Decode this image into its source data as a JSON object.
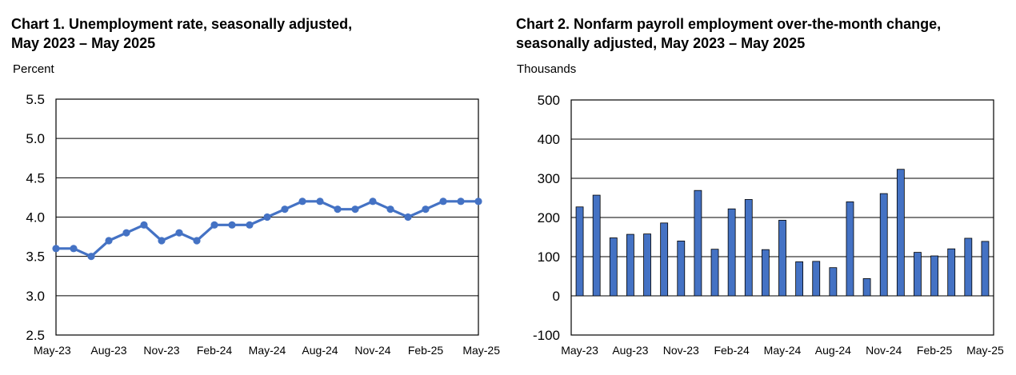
{
  "chart_data": [
    {
      "type": "line",
      "title_line1": "Chart 1. Unemployment rate, seasonally adjusted,",
      "title_line2": "May 2023 – May 2025",
      "ylabel": "Percent",
      "xlabel": "",
      "ylim": [
        2.5,
        5.5
      ],
      "yticks": [
        "2.5",
        "3.0",
        "3.5",
        "4.0",
        "4.5",
        "5.0",
        "5.5"
      ],
      "xtick_labels": [
        "May-23",
        "Aug-23",
        "Nov-23",
        "Feb-24",
        "May-24",
        "Aug-24",
        "Nov-24",
        "Feb-25",
        "May-25"
      ],
      "grid": true,
      "color": "#4472c4",
      "categories": [
        "May-23",
        "Jun-23",
        "Jul-23",
        "Aug-23",
        "Sep-23",
        "Oct-23",
        "Nov-23",
        "Dec-23",
        "Jan-24",
        "Feb-24",
        "Mar-24",
        "Apr-24",
        "May-24",
        "Jun-24",
        "Jul-24",
        "Aug-24",
        "Sep-24",
        "Oct-24",
        "Nov-24",
        "Dec-24",
        "Jan-25",
        "Feb-25",
        "Mar-25",
        "Apr-25",
        "May-25"
      ],
      "values": [
        3.6,
        3.6,
        3.5,
        3.7,
        3.8,
        3.9,
        3.7,
        3.8,
        3.7,
        3.9,
        3.9,
        3.9,
        4.0,
        4.1,
        4.2,
        4.2,
        4.1,
        4.1,
        4.2,
        4.1,
        4.0,
        4.1,
        4.2,
        4.2,
        4.2
      ]
    },
    {
      "type": "bar",
      "title_line1": "Chart 2. Nonfarm payroll employment over-the-month change,",
      "title_line2": "seasonally adjusted, May 2023 – May 2025",
      "ylabel": "Thousands",
      "xlabel": "",
      "ylim": [
        -100,
        500
      ],
      "yticks": [
        "-100",
        "0",
        "100",
        "200",
        "300",
        "400",
        "500"
      ],
      "xtick_labels": [
        "May-23",
        "Aug-23",
        "Nov-23",
        "Feb-24",
        "May-24",
        "Aug-24",
        "Nov-24",
        "Feb-25",
        "May-25"
      ],
      "grid": true,
      "color": "#4472c4",
      "categories": [
        "May-23",
        "Jun-23",
        "Jul-23",
        "Aug-23",
        "Sep-23",
        "Oct-23",
        "Nov-23",
        "Dec-23",
        "Jan-24",
        "Feb-24",
        "Mar-24",
        "Apr-24",
        "May-24",
        "Jun-24",
        "Jul-24",
        "Aug-24",
        "Sep-24",
        "Oct-24",
        "Nov-24",
        "Dec-24",
        "Jan-25",
        "Feb-25",
        "Mar-25",
        "Apr-25",
        "May-25"
      ],
      "values": [
        227,
        257,
        148,
        157,
        158,
        186,
        140,
        269,
        119,
        222,
        246,
        118,
        193,
        87,
        88,
        72,
        240,
        44,
        261,
        323,
        111,
        102,
        120,
        147,
        139
      ]
    }
  ]
}
